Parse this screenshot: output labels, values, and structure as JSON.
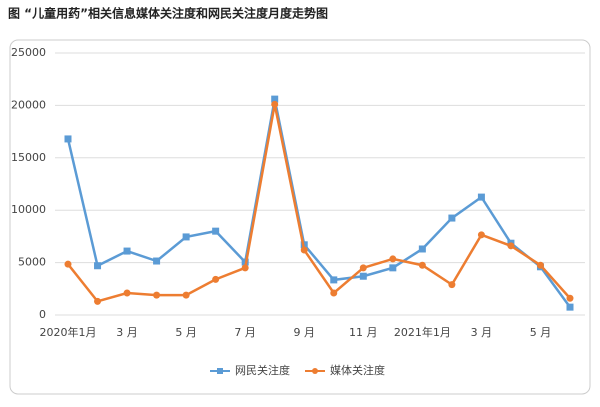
{
  "chart_data": {
    "type": "line",
    "title": "图 “儿童用药”相关信息媒体关注度和网民关注度月度走势图",
    "categories": [
      "2020年1月",
      null,
      "3 月",
      null,
      "5 月",
      null,
      "7 月",
      null,
      "9 月",
      null,
      "11 月",
      null,
      "2021年1月",
      null,
      "3 月",
      null,
      "5 月",
      null
    ],
    "series": [
      {
        "name": "网民关注度",
        "color": "#5b9bd5",
        "marker": "square",
        "values": [
          16800,
          4700,
          6100,
          5150,
          7450,
          8000,
          5050,
          20600,
          6700,
          3350,
          3700,
          4500,
          6300,
          9250,
          11250,
          6850,
          4600,
          750
        ]
      },
      {
        "name": "媒体关注度",
        "color": "#ed7d31",
        "marker": "circle",
        "values": [
          4850,
          1300,
          2100,
          1900,
          1900,
          3400,
          4500,
          20100,
          6200,
          2100,
          4500,
          5350,
          4750,
          2900,
          7650,
          6600,
          4750,
          1600
        ]
      }
    ],
    "ylim": [
      0,
      25000
    ],
    "yticks": [
      0,
      5000,
      10000,
      15000,
      20000,
      25000
    ],
    "grid": true,
    "legend": "bottom"
  }
}
